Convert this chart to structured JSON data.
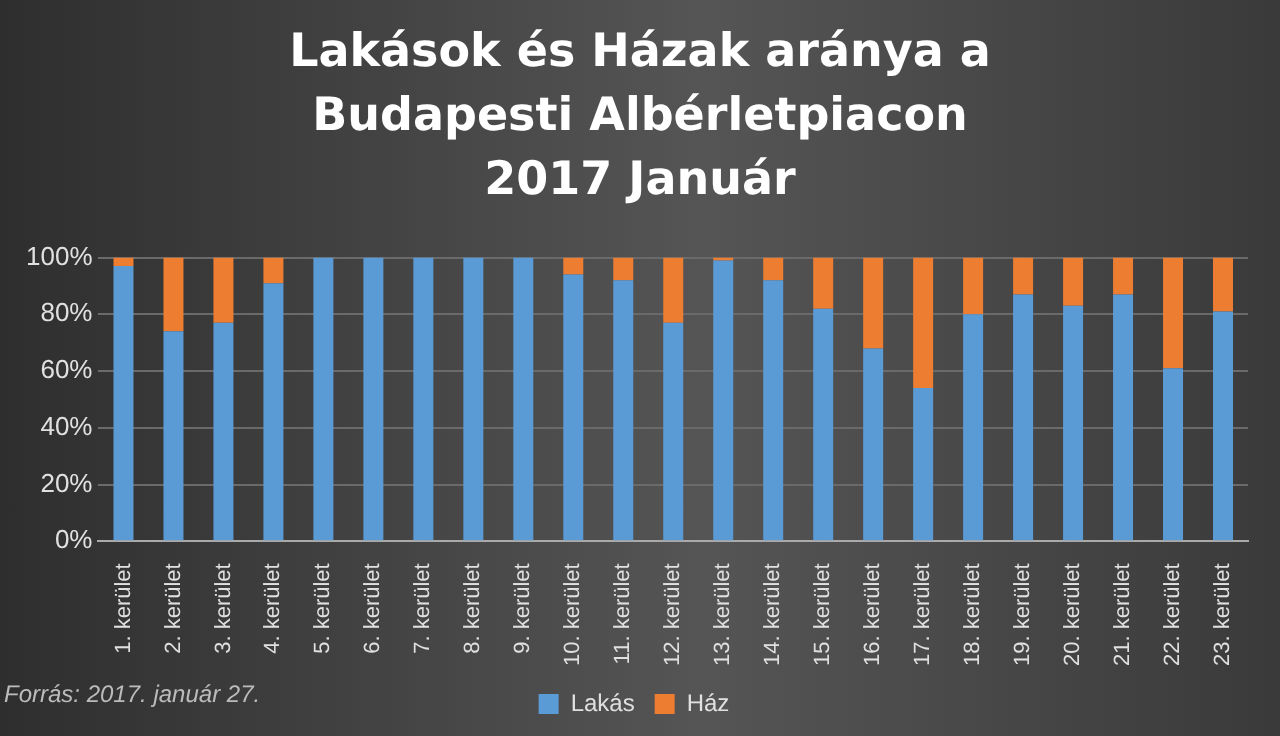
{
  "chart_data": {
    "type": "bar",
    "title": "Lakások és Házak aránya a Budapesti Albérletpiacon 2017 Január",
    "categories": [
      "1. kerület",
      "2. kerület",
      "3. kerület",
      "4. kerület",
      "5. kerület",
      "6. kerület",
      "7. kerület",
      "8. kerület",
      "9. kerület",
      "10. kerület",
      "11. kerület",
      "12. kerület",
      "13. kerület",
      "14. kerület",
      "15. kerület",
      "16. kerület",
      "17. kerület",
      "18. kerület",
      "19. kerület",
      "20. kerület",
      "21. kerület",
      "22. kerület",
      "23. kerület"
    ],
    "series": [
      {
        "name": "Lakás",
        "color": "#5b9bd5",
        "values": [
          97,
          74,
          77,
          91,
          100,
          100,
          100,
          100,
          100,
          94,
          92,
          77,
          99,
          92,
          82,
          68,
          54,
          80,
          87,
          83,
          87,
          61,
          81
        ]
      },
      {
        "name": "Ház",
        "color": "#ed7d31",
        "values": [
          3,
          26,
          23,
          9,
          0,
          0,
          0,
          0,
          0,
          6,
          8,
          23,
          1,
          8,
          18,
          32,
          46,
          20,
          13,
          17,
          13,
          39,
          19
        ]
      }
    ],
    "stacked": true,
    "ylim": [
      0,
      100
    ],
    "yticks": [
      {
        "value": 0,
        "label": "0%"
      },
      {
        "value": 20,
        "label": "20%"
      },
      {
        "value": 40,
        "label": "40%"
      },
      {
        "value": 60,
        "label": "60%"
      },
      {
        "value": 80,
        "label": "80%"
      },
      {
        "value": 100,
        "label": "100%"
      }
    ],
    "grid": "y",
    "legend": "bottom",
    "annotations": [
      "Forrás: 2017. január 27."
    ]
  }
}
